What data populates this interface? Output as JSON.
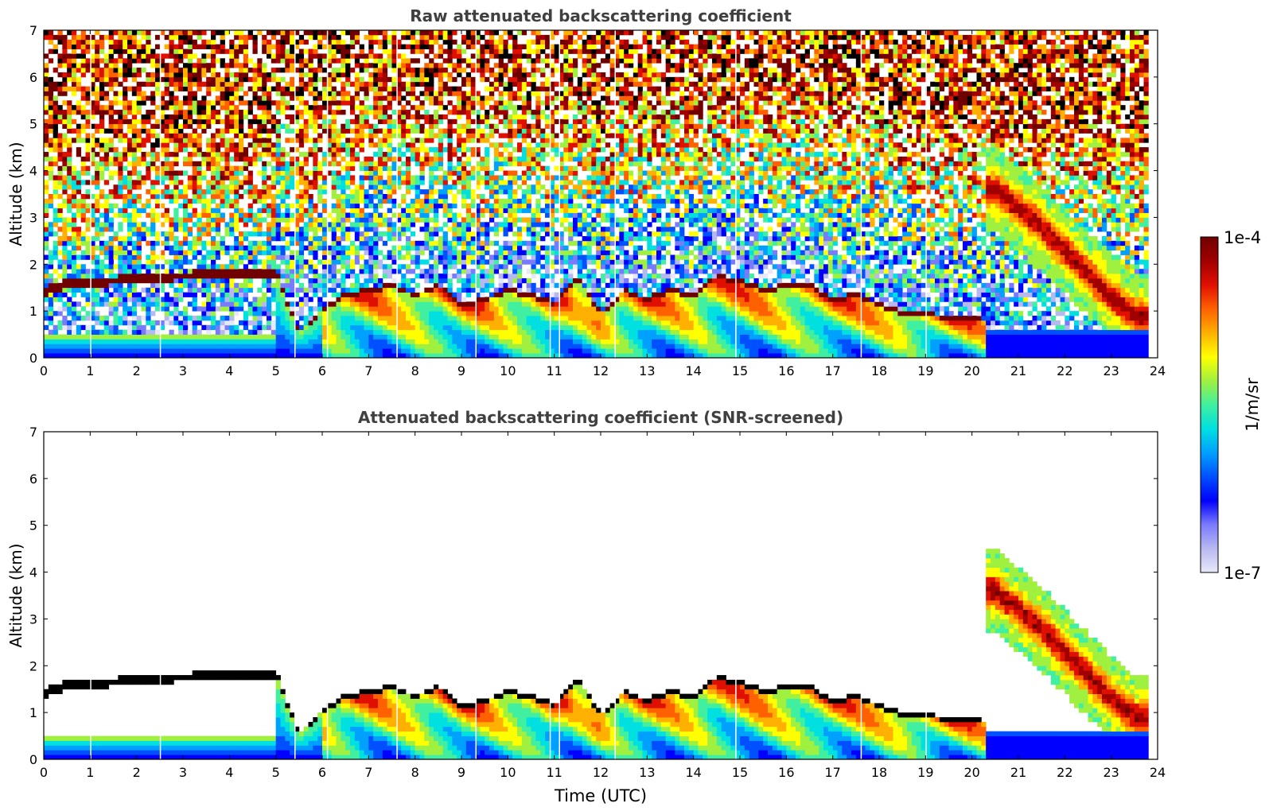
{
  "chart_data": [
    {
      "type": "heatmap",
      "title": "Raw attenuated backscattering coefficient",
      "xlabel": "",
      "ylabel": "Altitude (km)",
      "xlim": [
        0,
        24
      ],
      "ylim": [
        0,
        7
      ],
      "x_ticks": [
        0,
        1,
        2,
        3,
        4,
        5,
        6,
        7,
        8,
        9,
        10,
        11,
        12,
        13,
        14,
        15,
        16,
        17,
        18,
        19,
        20,
        21,
        22,
        23,
        24
      ],
      "y_ticks": [
        0,
        1,
        2,
        3,
        4,
        5,
        6,
        7
      ],
      "grid": false,
      "screened": false,
      "cloud_base_km": [
        [
          0.0,
          1.4
        ],
        [
          0.5,
          1.6
        ],
        [
          1.0,
          1.6
        ],
        [
          2.0,
          1.7
        ],
        [
          3.0,
          1.75
        ],
        [
          4.0,
          1.8
        ],
        [
          5.0,
          1.8
        ],
        [
          5.5,
          0.5
        ],
        [
          6.0,
          1.0
        ],
        [
          6.5,
          1.3
        ],
        [
          7.0,
          1.4
        ],
        [
          7.5,
          1.5
        ],
        [
          8.0,
          1.3
        ],
        [
          8.5,
          1.5
        ],
        [
          9.0,
          1.1
        ],
        [
          9.5,
          1.2
        ],
        [
          10.0,
          1.4
        ],
        [
          10.5,
          1.3
        ],
        [
          11.0,
          1.1
        ],
        [
          11.5,
          1.7
        ],
        [
          12.0,
          0.9
        ],
        [
          12.5,
          1.4
        ],
        [
          13.0,
          1.2
        ],
        [
          13.5,
          1.4
        ],
        [
          14.0,
          1.3
        ],
        [
          14.5,
          1.7
        ],
        [
          15.0,
          1.6
        ],
        [
          15.5,
          1.4
        ],
        [
          16.0,
          1.5
        ],
        [
          16.5,
          1.5
        ],
        [
          17.0,
          1.2
        ],
        [
          17.5,
          1.3
        ],
        [
          18.0,
          1.1
        ],
        [
          18.5,
          0.9
        ],
        [
          19.0,
          0.9
        ],
        [
          19.5,
          0.8
        ],
        [
          20.0,
          0.8
        ]
      ],
      "smoke_plume_km": [
        [
          20.5,
          3.6
        ],
        [
          21.0,
          3.2
        ],
        [
          21.5,
          2.8
        ],
        [
          22.0,
          2.3
        ],
        [
          22.5,
          1.8
        ],
        [
          23.0,
          1.3
        ],
        [
          23.5,
          0.9
        ]
      ]
    },
    {
      "type": "heatmap",
      "title": "Attenuated backscattering coefficient (SNR-screened)",
      "xlabel": "Time (UTC)",
      "ylabel": "Altitude (km)",
      "xlim": [
        0,
        24
      ],
      "ylim": [
        0,
        7
      ],
      "x_ticks": [
        0,
        1,
        2,
        3,
        4,
        5,
        6,
        7,
        8,
        9,
        10,
        11,
        12,
        13,
        14,
        15,
        16,
        17,
        18,
        19,
        20,
        21,
        22,
        23,
        24
      ],
      "y_ticks": [
        0,
        1,
        2,
        3,
        4,
        5,
        6,
        7
      ],
      "grid": false,
      "screened": true
    }
  ],
  "colorbar": {
    "label": "1/m/sr",
    "max_label": "1e-4",
    "min_label": "1e-7",
    "scale": "log",
    "colors": [
      "#e8e8f8",
      "#b8b8f0",
      "#7a7aff",
      "#0000ff",
      "#0050ff",
      "#00a0ff",
      "#00e0e0",
      "#40f0a0",
      "#a0f040",
      "#ffff00",
      "#ffb000",
      "#ff6000",
      "#e01000",
      "#a00000",
      "#700000"
    ]
  }
}
